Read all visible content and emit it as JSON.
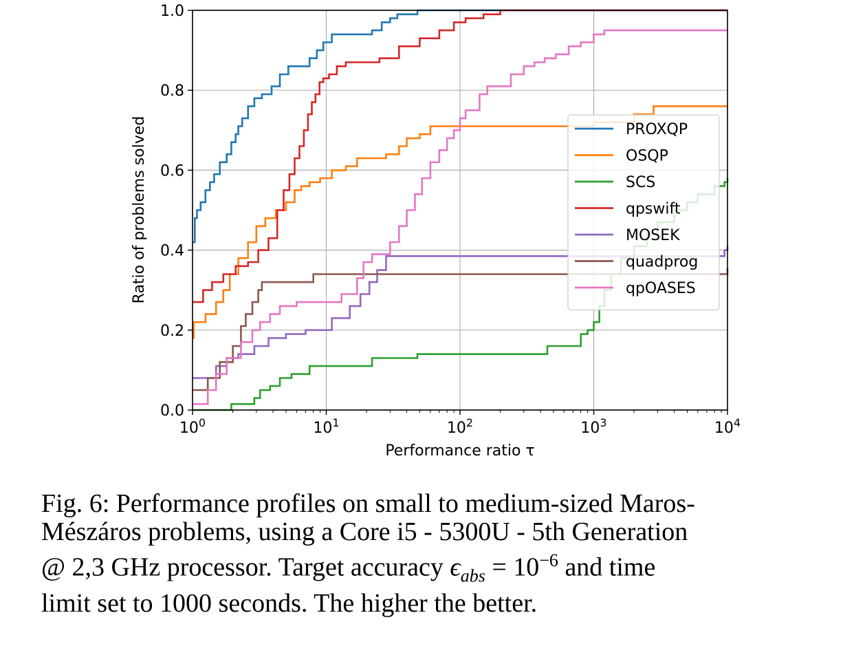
{
  "chart_data": {
    "type": "line",
    "xlabel": "Performance ratio τ",
    "ylabel": "Ratio of problems solved",
    "xscale": "log",
    "xlim": [
      1,
      10000
    ],
    "ylim": [
      0,
      1
    ],
    "xticks": [
      {
        "value": 1,
        "base": "10",
        "exp": "0"
      },
      {
        "value": 10,
        "base": "10",
        "exp": "1"
      },
      {
        "value": 100,
        "base": "10",
        "exp": "2"
      },
      {
        "value": 1000,
        "base": "10",
        "exp": "3"
      },
      {
        "value": 10000,
        "base": "10",
        "exp": "4"
      }
    ],
    "yticks": [
      "0.0",
      "0.2",
      "0.4",
      "0.6",
      "0.8",
      "1.0"
    ],
    "grid": true,
    "legend_position": "center-right",
    "series": [
      {
        "name": "PROXQP",
        "color": "#1f77b4",
        "x": [
          1,
          1.04,
          1.08,
          1.15,
          1.25,
          1.35,
          1.45,
          1.6,
          1.8,
          1.95,
          2.1,
          2.2,
          2.35,
          2.6,
          2.9,
          3.3,
          3.9,
          4.5,
          5.2,
          6,
          7.5,
          8.5,
          9.5,
          11,
          14,
          18,
          22,
          26,
          30,
          34,
          40,
          48,
          10000
        ],
        "y": [
          0.42,
          0.48,
          0.5,
          0.52,
          0.55,
          0.57,
          0.59,
          0.62,
          0.64,
          0.67,
          0.69,
          0.71,
          0.73,
          0.76,
          0.78,
          0.79,
          0.81,
          0.84,
          0.86,
          0.86,
          0.88,
          0.9,
          0.92,
          0.94,
          0.94,
          0.94,
          0.95,
          0.97,
          0.98,
          0.99,
          0.99,
          1.0,
          1.0
        ]
      },
      {
        "name": "OSQP",
        "color": "#ff7f0e",
        "x": [
          1,
          1.02,
          1.25,
          1.5,
          1.7,
          1.9,
          2.2,
          2.6,
          3,
          3.5,
          4.2,
          5,
          5.8,
          6.5,
          7.5,
          9,
          11,
          14,
          17,
          22,
          28,
          35,
          40,
          50,
          60,
          70,
          100,
          200,
          500,
          1000,
          2000,
          2800,
          10000
        ],
        "y": [
          0.18,
          0.22,
          0.24,
          0.27,
          0.3,
          0.34,
          0.38,
          0.42,
          0.46,
          0.48,
          0.5,
          0.52,
          0.55,
          0.56,
          0.57,
          0.58,
          0.6,
          0.61,
          0.63,
          0.63,
          0.64,
          0.66,
          0.68,
          0.69,
          0.71,
          0.71,
          0.71,
          0.71,
          0.71,
          0.72,
          0.74,
          0.76,
          0.76
        ]
      },
      {
        "name": "SCS",
        "color": "#2ca02c",
        "x": [
          1,
          1.95,
          2.9,
          3.2,
          3.8,
          4.5,
          5.5,
          7.5,
          10,
          20,
          22,
          38,
          48,
          100,
          200,
          300,
          450,
          600,
          800,
          900,
          1000,
          1100,
          1200,
          1350,
          1600,
          2000,
          2500,
          3000,
          4000,
          5000,
          6000,
          8000,
          9500,
          10000
        ],
        "y": [
          0,
          0.015,
          0.03,
          0.05,
          0.06,
          0.08,
          0.09,
          0.11,
          0.11,
          0.11,
          0.13,
          0.13,
          0.14,
          0.14,
          0.14,
          0.14,
          0.16,
          0.16,
          0.19,
          0.2,
          0.22,
          0.26,
          0.3,
          0.34,
          0.38,
          0.41,
          0.44,
          0.47,
          0.5,
          0.52,
          0.54,
          0.56,
          0.57,
          0.58
        ]
      },
      {
        "name": "qpswift",
        "color": "#d62728",
        "x": [
          1,
          1.2,
          1.4,
          1.7,
          2.1,
          2.6,
          3.1,
          3.7,
          4.3,
          4.8,
          5.3,
          5.8,
          6.3,
          6.8,
          7.3,
          7.8,
          8.3,
          8.9,
          9.5,
          10.5,
          12,
          14,
          18,
          25,
          35,
          50,
          70,
          90,
          110,
          150,
          200,
          10000
        ],
        "y": [
          0.27,
          0.3,
          0.32,
          0.34,
          0.36,
          0.37,
          0.4,
          0.43,
          0.5,
          0.55,
          0.59,
          0.63,
          0.66,
          0.7,
          0.74,
          0.77,
          0.79,
          0.82,
          0.83,
          0.84,
          0.86,
          0.87,
          0.87,
          0.88,
          0.91,
          0.93,
          0.95,
          0.97,
          0.98,
          0.99,
          1.0,
          1.0
        ]
      },
      {
        "name": "MOSEK",
        "color": "#9467bd",
        "x": [
          1,
          1.5,
          1.8,
          2.2,
          2.9,
          3.7,
          5,
          7,
          11,
          15,
          18,
          21,
          24,
          28,
          9500,
          10000
        ],
        "y": [
          0.08,
          0.11,
          0.13,
          0.14,
          0.16,
          0.18,
          0.19,
          0.2,
          0.23,
          0.26,
          0.29,
          0.32,
          0.35,
          0.385,
          0.4,
          0.41
        ]
      },
      {
        "name": "quadprog",
        "color": "#8c564b",
        "x": [
          1,
          1.3,
          1.6,
          2,
          2.3,
          2.5,
          2.8,
          3.1,
          3.3,
          8,
          10000
        ],
        "y": [
          0.05,
          0.08,
          0.12,
          0.16,
          0.21,
          0.24,
          0.27,
          0.3,
          0.32,
          0.34,
          0.355
        ]
      },
      {
        "name": "qpOASES",
        "color": "#e377c2",
        "x": [
          1,
          1.3,
          1.5,
          1.8,
          2.3,
          2.8,
          3.2,
          3.8,
          4.5,
          6,
          9,
          13,
          17,
          19,
          22,
          25,
          30,
          35,
          40,
          46,
          52,
          60,
          70,
          80,
          90,
          100,
          110,
          140,
          160,
          200,
          240,
          300,
          360,
          430,
          520,
          650,
          800,
          1000,
          1200,
          10000
        ],
        "y": [
          0.015,
          0.05,
          0.09,
          0.13,
          0.17,
          0.2,
          0.22,
          0.24,
          0.26,
          0.27,
          0.27,
          0.29,
          0.33,
          0.37,
          0.39,
          0.39,
          0.42,
          0.46,
          0.5,
          0.54,
          0.58,
          0.62,
          0.65,
          0.68,
          0.7,
          0.73,
          0.75,
          0.79,
          0.81,
          0.81,
          0.84,
          0.86,
          0.87,
          0.88,
          0.89,
          0.91,
          0.92,
          0.94,
          0.95,
          0.95
        ]
      }
    ]
  },
  "caption": {
    "line1": "Fig. 6: Performance profiles on small to medium-sized Maros-",
    "line2": "Mészáros problems, using a Core i5 - 5300U - 5th Generation",
    "line3_text": "@ 2,3 GHz processor. Target accuracy ",
    "line3_math_symbol": "ϵ",
    "line3_math_sub": "abs",
    "line3_math_eq": " = 10",
    "line3_math_exp": "−6",
    "line3_tail": " and time",
    "line4": "limit set to 1000 seconds. The higher the better."
  }
}
